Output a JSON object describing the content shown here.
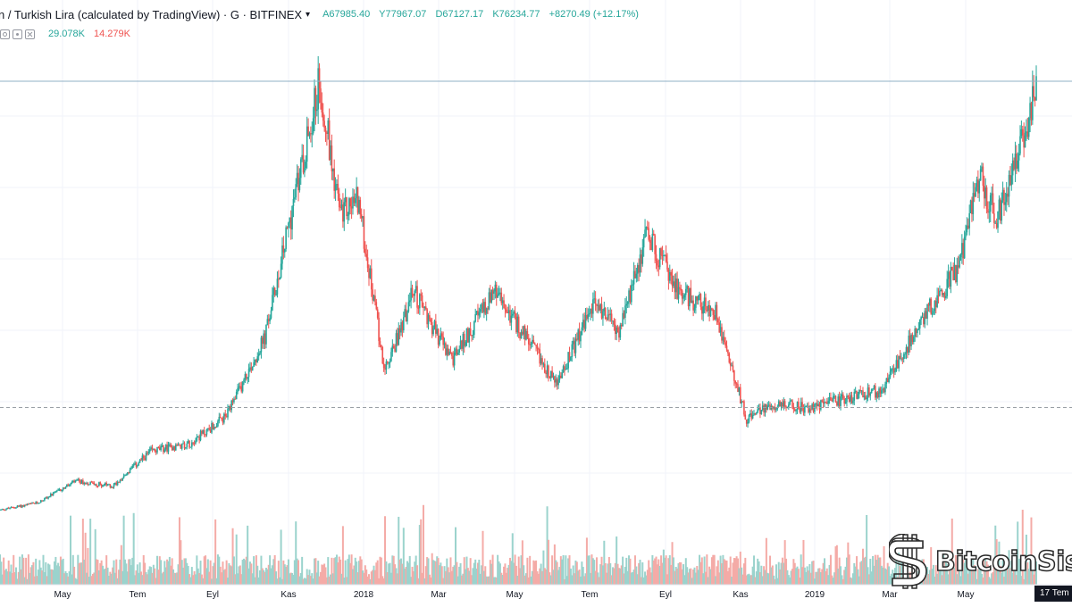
{
  "header": {
    "symbol": "n / Turkish Lira (calculated by TradingView) · G · BITFINEX",
    "ohlc": {
      "open": "A67985.40",
      "high": "Y77967.07",
      "low": "D67127.17",
      "close": "K76234.77",
      "change": "+8270.49 (+12.17%)"
    }
  },
  "volume_header": {
    "value1": "29.078K",
    "value2": "14.279K"
  },
  "date_tag": "17 Tem",
  "watermark": "BitcoinSist",
  "colors": {
    "up": "#26a69a",
    "down": "#ef5350",
    "up_volume": "#9bd3cd",
    "down_volume": "#f4aba7",
    "hline": "#8fb0c4",
    "dashed": "#9aa0a6"
  },
  "chart_data": {
    "type": "line",
    "title": "",
    "xlabel": "",
    "ylabel": "",
    "x_ticks": [
      "May",
      "Tem",
      "Eyl",
      "Kas",
      "2018",
      "Mar",
      "May",
      "Tem",
      "Eyl",
      "Kas",
      "2019",
      "Mar",
      "May"
    ],
    "ylim": [
      0,
      80000
    ],
    "price_series_approx": {
      "name": "",
      "points": [
        [
          "2017-04-01",
          4400
        ],
        [
          "2017-05-01",
          5600
        ],
        [
          "2017-06-01",
          9300
        ],
        [
          "2017-07-01",
          8500
        ],
        [
          "2017-08-01",
          14500
        ],
        [
          "2017-09-01",
          15800
        ],
        [
          "2017-10-01",
          20500
        ],
        [
          "2017-11-01",
          34000
        ],
        [
          "2017-12-15",
          78000
        ],
        [
          "2018-01-01",
          55000
        ],
        [
          "2018-01-15",
          58000
        ],
        [
          "2018-02-06",
          28000
        ],
        [
          "2018-03-01",
          42000
        ],
        [
          "2018-04-01",
          30000
        ],
        [
          "2018-05-05",
          42000
        ],
        [
          "2018-06-25",
          26000
        ],
        [
          "2018-07-25",
          40000
        ],
        [
          "2018-08-15",
          35000
        ],
        [
          "2018-09-05",
          52000
        ],
        [
          "2018-10-01",
          42000
        ],
        [
          "2018-11-01",
          38000
        ],
        [
          "2018-11-25",
          20000
        ],
        [
          "2018-12-15",
          22500
        ],
        [
          "2019-01-15",
          22000
        ],
        [
          "2019-02-15",
          23500
        ],
        [
          "2019-03-15",
          25000
        ],
        [
          "2019-04-15",
          37000
        ],
        [
          "2019-05-15",
          46000
        ],
        [
          "2019-06-01",
          62000
        ],
        [
          "2019-06-15",
          54000
        ],
        [
          "2019-07-17",
          76234
        ]
      ]
    },
    "reference_lines": [
      {
        "style": "solid",
        "y": 78000
      },
      {
        "style": "dashed",
        "y": 22000
      }
    ],
    "grid": true,
    "legend": "none"
  }
}
